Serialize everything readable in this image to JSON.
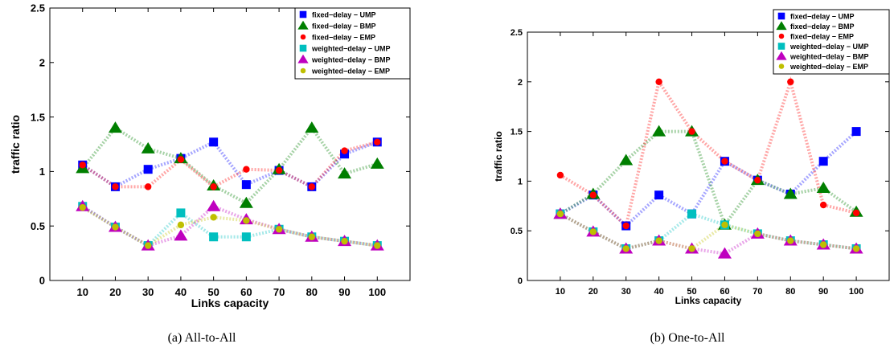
{
  "chart_data": [
    {
      "type": "line",
      "caption": "(a)  All-to-All",
      "xlabel": "Links capacity",
      "ylabel": "traffic ratio",
      "xlim": [
        0,
        110
      ],
      "ylim": [
        0,
        2.5
      ],
      "x_ticks": [
        10,
        20,
        30,
        40,
        50,
        60,
        70,
        80,
        90,
        100
      ],
      "y_ticks": [
        0,
        0.5,
        1,
        1.5,
        2,
        2.5
      ],
      "y_tick_labels": [
        "0",
        "0.5",
        "1",
        "1.5",
        "2",
        "2.5"
      ],
      "grid": false,
      "legend_position": "top-right",
      "x": [
        10,
        20,
        30,
        40,
        50,
        60,
        70,
        80,
        90,
        100
      ],
      "series": [
        {
          "name": "fixed−delay − UMP",
          "color": "#0000ff",
          "marker": "square",
          "values": [
            1.06,
            0.86,
            1.02,
            1.12,
            1.27,
            0.88,
            1.01,
            0.86,
            1.16,
            1.27
          ]
        },
        {
          "name": "fixed−delay − BMP",
          "color": "#007f00",
          "marker": "triangle",
          "values": [
            1.03,
            1.4,
            1.21,
            1.12,
            0.87,
            0.71,
            1.02,
            1.4,
            0.98,
            1.07
          ]
        },
        {
          "name": "fixed−delay − EMP",
          "color": "#ff0000",
          "marker": "circle",
          "values": [
            1.06,
            0.86,
            0.86,
            1.11,
            0.86,
            1.02,
            1.01,
            0.86,
            1.19,
            1.27
          ]
        },
        {
          "name": "weighted−delay − UMP",
          "color": "#00bfbf",
          "marker": "square",
          "values": [
            0.68,
            0.49,
            0.32,
            0.62,
            0.4,
            0.4,
            0.47,
            0.4,
            0.36,
            0.32
          ]
        },
        {
          "name": "weighted−delay − BMP",
          "color": "#bf00bf",
          "marker": "triangle",
          "values": [
            0.68,
            0.49,
            0.32,
            0.41,
            0.68,
            0.56,
            0.47,
            0.4,
            0.36,
            0.32
          ]
        },
        {
          "name": "weighted−delay − EMP",
          "color": "#bfbf00",
          "marker": "circle",
          "values": [
            0.67,
            0.49,
            0.32,
            0.51,
            0.58,
            0.55,
            0.47,
            0.4,
            0.36,
            0.32
          ]
        }
      ]
    },
    {
      "type": "line",
      "caption": "(b)  One-to-All",
      "xlabel": "Links capacity",
      "ylabel": "traffic ratio",
      "xlim": [
        0,
        110
      ],
      "ylim": [
        0,
        2.5
      ],
      "x_ticks": [
        10,
        20,
        30,
        40,
        50,
        60,
        70,
        80,
        90,
        100
      ],
      "y_ticks": [
        0,
        0.5,
        1,
        1.5,
        2,
        2.5
      ],
      "y_tick_labels": [
        "0",
        "0.5",
        "1",
        "1.5",
        "2",
        "2.5"
      ],
      "grid": false,
      "legend_position": "top-right",
      "x": [
        10,
        20,
        30,
        40,
        50,
        60,
        70,
        80,
        90,
        100
      ],
      "series": [
        {
          "name": "fixed−delay − UMP",
          "color": "#0000ff",
          "marker": "square",
          "values": [
            0.67,
            0.86,
            0.55,
            0.86,
            0.67,
            1.2,
            1.01,
            0.87,
            1.2,
            1.5
          ]
        },
        {
          "name": "fixed−delay − BMP",
          "color": "#007f00",
          "marker": "triangle",
          "values": [
            0.67,
            0.87,
            1.21,
            1.5,
            1.5,
            0.56,
            1.01,
            0.87,
            0.93,
            0.69
          ]
        },
        {
          "name": "fixed−delay − EMP",
          "color": "#ff0000",
          "marker": "circle",
          "values": [
            1.06,
            0.86,
            0.55,
            2.0,
            1.5,
            1.2,
            1.01,
            2.0,
            0.76,
            0.68
          ]
        },
        {
          "name": "weighted−delay − UMP",
          "color": "#00bfbf",
          "marker": "square",
          "values": [
            0.67,
            0.49,
            0.32,
            0.4,
            0.67,
            0.56,
            0.47,
            0.4,
            0.36,
            0.32
          ]
        },
        {
          "name": "weighted−delay − BMP",
          "color": "#bf00bf",
          "marker": "triangle",
          "values": [
            0.67,
            0.49,
            0.32,
            0.4,
            0.32,
            0.27,
            0.47,
            0.4,
            0.36,
            0.32
          ]
        },
        {
          "name": "weighted−delay − EMP",
          "color": "#bfbf00",
          "marker": "circle",
          "values": [
            0.67,
            0.49,
            0.32,
            0.4,
            0.32,
            0.56,
            0.47,
            0.4,
            0.36,
            0.32
          ]
        }
      ]
    }
  ]
}
